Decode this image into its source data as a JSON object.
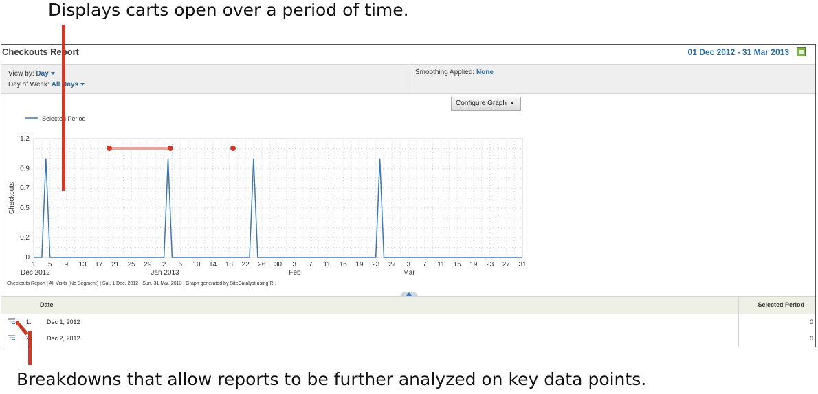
{
  "callouts": {
    "top": "Displays carts open over a period of time.",
    "bottom": "Breakdowns that allow reports to be further analyzed on key data points."
  },
  "report": {
    "title": "Checkouts Report",
    "date_range": "01 Dec 2012 - 31 Mar 2013",
    "calendar_icon": "calendar-icon"
  },
  "options": {
    "view_by_label": "View by:",
    "view_by_value": "Day",
    "day_of_week_label": "Day of Week:",
    "day_of_week_value": "All Days",
    "smoothing_label": "Smoothing Applied:",
    "smoothing_value": "None"
  },
  "configure_graph": "Configure Graph",
  "chart_data": {
    "type": "line",
    "legend": "Selected Period",
    "ylabel": "Checkouts",
    "ylim": [
      0,
      1.2
    ],
    "yticks": [
      "1.2",
      "0.9",
      "0.7",
      "0.5",
      "0.2",
      "0"
    ],
    "xtick_labels": [
      "1",
      "5",
      "9",
      "13",
      "17",
      "21",
      "25",
      "29",
      "2",
      "6",
      "10",
      "14",
      "18",
      "22",
      "26",
      "30",
      "3",
      "7",
      "11",
      "15",
      "19",
      "23",
      "27",
      "3",
      "7",
      "11",
      "15",
      "19",
      "23",
      "27",
      "31"
    ],
    "month_labels": [
      "Dec 2012",
      "Jan 2013",
      "Feb",
      "Mar"
    ],
    "series": [
      {
        "name": "Selected Period",
        "x": [
          "Dec 1",
          "Dec 2",
          "Dec 3",
          "Dec 4",
          "Dec 5",
          "Dec 6",
          "Dec 31",
          "Jan 1",
          "Jan 2",
          "Jan 3",
          "Jan 4",
          "Jan 21",
          "Jan 22",
          "Jan 23",
          "Jan 24",
          "Jan 25",
          "Feb 22",
          "Feb 23",
          "Feb 24",
          "Feb 25",
          "Feb 26",
          "Mar 31"
        ],
        "values": [
          0,
          0,
          0,
          1,
          0,
          0,
          0,
          0,
          0,
          1,
          0,
          0,
          0,
          0,
          1,
          0,
          0,
          0,
          1,
          0,
          0,
          0
        ]
      }
    ],
    "color": "#3a78b4"
  },
  "footnote": "Checkouts Report | All Visits (No Segment) | Sat.  1 Dec. 2012 - Sun. 31 Mar. 2013 | Graph generated by SiteCatalyst using R..",
  "table": {
    "col_date": "Date",
    "col_period": "Selected Period",
    "rows": [
      {
        "rank": "1.",
        "date": "Dec 1, 2012",
        "value": "0",
        "icon": "breakdown-icon"
      },
      {
        "rank": "2.",
        "date": "Dec 2, 2012",
        "value": "0",
        "icon": "breakdown-icon"
      }
    ]
  },
  "annotation_color": "#cc3a2c"
}
